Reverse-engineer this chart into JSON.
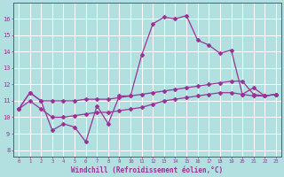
{
  "background_color": "#b2e0e0",
  "grid_color": "#ffffff",
  "line_color": "#993399",
  "xlabel": "Windchill (Refroidissement éolien,°C)",
  "xlabel_fontsize": 5.5,
  "ytick_labels": [
    "8",
    "9",
    "10",
    "11",
    "12",
    "13",
    "14",
    "15",
    "16"
  ],
  "yticks": [
    8,
    9,
    10,
    11,
    12,
    13,
    14,
    15,
    16
  ],
  "ylim": [
    7.6,
    17.0
  ],
  "xlim": [
    -0.5,
    23.5
  ],
  "line1_x": [
    0,
    1,
    2,
    3,
    4,
    5,
    6,
    7,
    8,
    9,
    10,
    11,
    12,
    13,
    14,
    15,
    16,
    17,
    18,
    19,
    20,
    21,
    22,
    23
  ],
  "line1_y": [
    10.5,
    11.5,
    11.0,
    9.2,
    9.6,
    9.4,
    8.5,
    10.7,
    9.6,
    11.3,
    11.3,
    13.8,
    15.7,
    16.1,
    16.0,
    16.2,
    14.7,
    14.4,
    13.9,
    14.1,
    11.4,
    11.8,
    11.3,
    11.4
  ],
  "line2_x": [
    0,
    1,
    2,
    3,
    4,
    5,
    6,
    7,
    8,
    9,
    10,
    11,
    12,
    13,
    14,
    15,
    16,
    17,
    18,
    19,
    20,
    21,
    22,
    23
  ],
  "line2_y": [
    10.5,
    11.5,
    11.0,
    11.0,
    11.0,
    11.0,
    11.1,
    11.1,
    11.1,
    11.2,
    11.3,
    11.4,
    11.5,
    11.6,
    11.7,
    11.8,
    11.9,
    12.0,
    12.1,
    12.2,
    12.2,
    11.4,
    11.3,
    11.4
  ],
  "line3_x": [
    0,
    1,
    2,
    3,
    4,
    5,
    6,
    7,
    8,
    9,
    10,
    11,
    12,
    13,
    14,
    15,
    16,
    17,
    18,
    19,
    20,
    21,
    22,
    23
  ],
  "line3_y": [
    10.5,
    11.0,
    10.5,
    10.0,
    10.0,
    10.1,
    10.2,
    10.3,
    10.3,
    10.4,
    10.5,
    10.6,
    10.8,
    11.0,
    11.1,
    11.2,
    11.3,
    11.4,
    11.5,
    11.5,
    11.4,
    11.3,
    11.3,
    11.4
  ]
}
